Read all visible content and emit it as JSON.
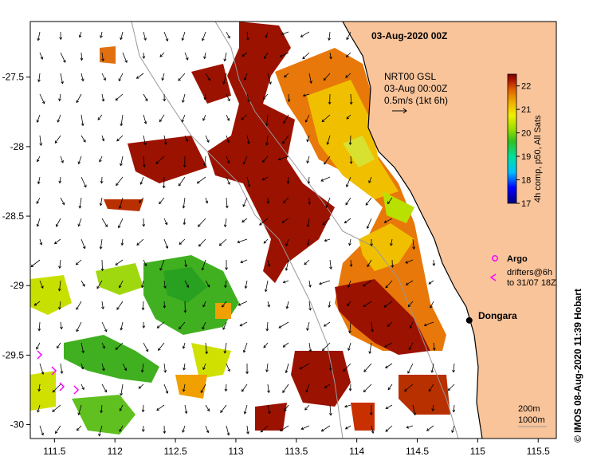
{
  "title": "03-Aug-2020 00Z",
  "vector_info": {
    "line1": "NRT00 GSL",
    "line2": "03-Aug 00:00Z",
    "line3": "0.5m/s (1kt 6h)"
  },
  "colorbar": {
    "label": "4h comp, p50, All Sats",
    "min": 17,
    "max": 22.5,
    "ticks": [
      "22",
      "21",
      "20",
      "19",
      "18",
      "17"
    ]
  },
  "legend": {
    "argo": "Argo",
    "drifters_line1": "drifters@6h",
    "drifters_line2": "to 31/07 18Z"
  },
  "place": {
    "name": "Dongara",
    "lon": 114.93,
    "lat": -29.25
  },
  "isobaths": {
    "line1": "200m",
    "line2": "1000m"
  },
  "credit": "© IMOS 08-Aug-2020 11:39 Hobart",
  "axes": {
    "x_ticks": [
      "111.5",
      "112",
      "112.5",
      "113",
      "113.5",
      "114",
      "114.5",
      "115",
      "115.5"
    ],
    "y_ticks": [
      "-27.5",
      "-28",
      "-28.5",
      "-29",
      "-29.5",
      "-30"
    ],
    "lon_range": [
      111.3,
      115.65
    ],
    "lat_range": [
      -30.1,
      -27.1
    ]
  },
  "colors": {
    "land": "#f9c49a",
    "coast": "#000000",
    "argo": "#ff00ff",
    "drifter": "#ff00ff",
    "isobath": "#999999"
  }
}
